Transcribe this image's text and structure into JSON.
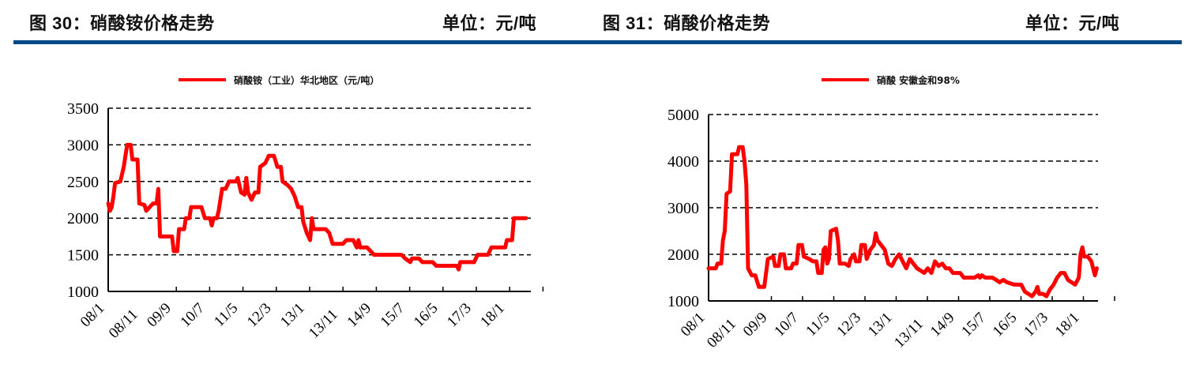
{
  "header": {
    "left": {
      "figure_title": "图 30：硝酸铵价格走势",
      "unit": "单位：元/吨"
    },
    "right": {
      "figure_title": "图 31：硝酸价格走势",
      "unit": "单位：元/吨"
    },
    "divider_color": "#004b87"
  },
  "colors": {
    "series": "#ff0000",
    "axis": "#000000",
    "grid": "#000000"
  },
  "chart_data": [
    {
      "type": "line",
      "title": "硝酸铵价格走势",
      "unit": "元/吨",
      "legend": [
        "硝酸铵（工业）华北地区（元/吨）"
      ],
      "legend_position": "top",
      "xlabel": "",
      "ylabel": "",
      "ylim": [
        1000,
        3500
      ],
      "yticks": [
        1000,
        1500,
        2000,
        2500,
        3000,
        3500
      ],
      "grid": "horizontal dashed",
      "categories": [
        "08/1",
        "08/11",
        "09/9",
        "10/7",
        "11/5",
        "12/3",
        "13/1",
        "13/11",
        "14/9",
        "15/7",
        "16/5",
        "17/3",
        "18/1"
      ],
      "series": [
        {
          "name": "硝酸铵（工业）华北地区（元/吨）",
          "points": [
            [
              0,
              2200
            ],
            [
              0.5,
              2100
            ],
            [
              1,
              2150
            ],
            [
              1.5,
              2300
            ],
            [
              2,
              2480
            ],
            [
              3.5,
              2500
            ],
            [
              4.5,
              2700
            ],
            [
              5,
              2850
            ],
            [
              5.5,
              3000
            ],
            [
              6.5,
              3000
            ],
            [
              7,
              2800
            ],
            [
              8.5,
              2800
            ],
            [
              9,
              2200
            ],
            [
              10.5,
              2180
            ],
            [
              11,
              2100
            ],
            [
              12,
              2150
            ],
            [
              13,
              2200
            ],
            [
              14,
              2200
            ],
            [
              14.5,
              2400
            ],
            [
              15,
              1750
            ],
            [
              17,
              1750
            ],
            [
              18.5,
              1750
            ],
            [
              19,
              1550
            ],
            [
              20,
              1550
            ],
            [
              20.5,
              1850
            ],
            [
              22,
              1850
            ],
            [
              22.5,
              2000
            ],
            [
              23.5,
              2000
            ],
            [
              24,
              2150
            ],
            [
              27,
              2150
            ],
            [
              28,
              2000
            ],
            [
              29.5,
              2000
            ],
            [
              30,
              1900
            ],
            [
              30.5,
              2000
            ],
            [
              31.5,
              2000
            ],
            [
              32,
              2100
            ],
            [
              33,
              2400
            ],
            [
              34,
              2400
            ],
            [
              35,
              2500
            ],
            [
              37,
              2500
            ],
            [
              37.5,
              2550
            ],
            [
              38.5,
              2350
            ],
            [
              39.5,
              2320
            ],
            [
              40,
              2550
            ],
            [
              40.5,
              2350
            ],
            [
              41.5,
              2250
            ],
            [
              42.5,
              2350
            ],
            [
              43.5,
              2350
            ],
            [
              44,
              2700
            ],
            [
              45.5,
              2750
            ],
            [
              46.5,
              2850
            ],
            [
              48,
              2850
            ],
            [
              49,
              2700
            ],
            [
              50,
              2700
            ],
            [
              50.5,
              2500
            ],
            [
              52,
              2450
            ],
            [
              53,
              2400
            ],
            [
              54,
              2300
            ],
            [
              55,
              2150
            ],
            [
              56,
              2150
            ],
            [
              56.5,
              1950
            ],
            [
              57.5,
              1800
            ],
            [
              58.5,
              1700
            ],
            [
              59,
              2000
            ],
            [
              59.5,
              1850
            ],
            [
              61,
              1850
            ],
            [
              63,
              1850
            ],
            [
              64,
              1800
            ],
            [
              65,
              1650
            ],
            [
              68,
              1650
            ],
            [
              69,
              1700
            ],
            [
              71,
              1700
            ],
            [
              72,
              1600
            ],
            [
              72.5,
              1700
            ],
            [
              73,
              1600
            ],
            [
              75,
              1600
            ],
            [
              76,
              1550
            ],
            [
              77,
              1500
            ],
            [
              80,
              1500
            ],
            [
              85,
              1500
            ],
            [
              86,
              1450
            ],
            [
              87.5,
              1400
            ],
            [
              88,
              1450
            ],
            [
              90,
              1450
            ],
            [
              91,
              1400
            ],
            [
              94,
              1400
            ],
            [
              95,
              1350
            ],
            [
              99,
              1350
            ],
            [
              101,
              1350
            ],
            [
              101.5,
              1300
            ],
            [
              102,
              1400
            ],
            [
              106,
              1400
            ],
            [
              107,
              1500
            ],
            [
              110,
              1500
            ],
            [
              111,
              1600
            ],
            [
              115,
              1600
            ],
            [
              115.5,
              1700
            ],
            [
              117,
              1700
            ],
            [
              117.5,
              2000
            ],
            [
              121,
              2000
            ]
          ]
        }
      ]
    },
    {
      "type": "line",
      "title": "硝酸价格走势",
      "unit": "元/吨",
      "legend": [
        "硝酸 安徽金和98%"
      ],
      "legend_position": "top",
      "xlabel": "",
      "ylabel": "",
      "ylim": [
        1000,
        5000
      ],
      "yticks": [
        1000,
        2000,
        3000,
        4000,
        5000
      ],
      "grid": "horizontal dashed",
      "categories": [
        "08/1",
        "08/11",
        "09/9",
        "10/7",
        "11/5",
        "12/3",
        "13/1",
        "13/11",
        "14/9",
        "15/7",
        "16/5",
        "17/3",
        "18/1"
      ],
      "series": [
        {
          "name": "硝酸 安徽金和98%",
          "points": [
            [
              0,
              1700
            ],
            [
              2,
              1700
            ],
            [
              2.5,
              1800
            ],
            [
              3.5,
              1800
            ],
            [
              4,
              2300
            ],
            [
              4.5,
              2500
            ],
            [
              5,
              3300
            ],
            [
              6,
              3350
            ],
            [
              6.5,
              4150
            ],
            [
              8,
              4150
            ],
            [
              8.5,
              4300
            ],
            [
              9.5,
              4300
            ],
            [
              10,
              4000
            ],
            [
              10.5,
              3500
            ],
            [
              11,
              1700
            ],
            [
              12,
              1550
            ],
            [
              13,
              1550
            ],
            [
              14,
              1300
            ],
            [
              15.5,
              1300
            ],
            [
              16,
              1600
            ],
            [
              16.5,
              1900
            ],
            [
              18,
              1950
            ],
            [
              18.5,
              1750
            ],
            [
              19.5,
              1750
            ],
            [
              20,
              2000
            ],
            [
              21,
              2000
            ],
            [
              21.5,
              1700
            ],
            [
              23,
              1700
            ],
            [
              23.5,
              1800
            ],
            [
              24.5,
              1800
            ],
            [
              25,
              2200
            ],
            [
              26,
              2200
            ],
            [
              26.5,
              1950
            ],
            [
              28,
              1900
            ],
            [
              29,
              1850
            ],
            [
              30,
              1850
            ],
            [
              30.5,
              1600
            ],
            [
              31.5,
              1600
            ],
            [
              32,
              2100
            ],
            [
              32.5,
              2150
            ],
            [
              33,
              1800
            ],
            [
              33.5,
              1900
            ],
            [
              34,
              2500
            ],
            [
              35.5,
              2550
            ],
            [
              36,
              2300
            ],
            [
              36.5,
              1800
            ],
            [
              38,
              1800
            ],
            [
              39,
              1750
            ],
            [
              39.5,
              1900
            ],
            [
              40.5,
              2000
            ],
            [
              41,
              1850
            ],
            [
              42,
              1850
            ],
            [
              42.5,
              2200
            ],
            [
              43.5,
              2200
            ],
            [
              44,
              1900
            ],
            [
              45,
              2100
            ],
            [
              46,
              2200
            ],
            [
              46.5,
              2450
            ],
            [
              47,
              2300
            ],
            [
              48,
              2200
            ],
            [
              49,
              2100
            ],
            [
              50,
              1800
            ],
            [
              51,
              1750
            ],
            [
              52,
              1900
            ],
            [
              53,
              2000
            ],
            [
              54,
              1850
            ],
            [
              55,
              1700
            ],
            [
              56,
              1900
            ],
            [
              57,
              1800
            ],
            [
              58,
              1700
            ],
            [
              59,
              1650
            ],
            [
              60,
              1600
            ],
            [
              61,
              1700
            ],
            [
              62,
              1600
            ],
            [
              63,
              1850
            ],
            [
              64,
              1750
            ],
            [
              65,
              1800
            ],
            [
              66,
              1700
            ],
            [
              67,
              1700
            ],
            [
              68,
              1600
            ],
            [
              70,
              1600
            ],
            [
              71,
              1500
            ],
            [
              74,
              1500
            ],
            [
              75,
              1550
            ],
            [
              75.5,
              1500
            ],
            [
              76,
              1550
            ],
            [
              77,
              1500
            ],
            [
              79,
              1500
            ],
            [
              80,
              1450
            ],
            [
              81,
              1400
            ],
            [
              82,
              1450
            ],
            [
              83,
              1400
            ],
            [
              85,
              1350
            ],
            [
              87,
              1350
            ],
            [
              88,
              1200
            ],
            [
              89,
              1150
            ],
            [
              90,
              1100
            ],
            [
              91,
              1200
            ],
            [
              91.5,
              1300
            ],
            [
              92,
              1150
            ],
            [
              93,
              1150
            ],
            [
              94,
              1100
            ],
            [
              95,
              1250
            ],
            [
              96,
              1350
            ],
            [
              97,
              1500
            ],
            [
              98,
              1600
            ],
            [
              99,
              1600
            ],
            [
              100,
              1450
            ],
            [
              101,
              1400
            ],
            [
              102,
              1350
            ],
            [
              103,
              1500
            ],
            [
              103.5,
              2000
            ],
            [
              104,
              2150
            ],
            [
              104.5,
              1950
            ],
            [
              105.5,
              1950
            ],
            [
              106.5,
              1850
            ],
            [
              107,
              1700
            ],
            [
              107.5,
              1550
            ],
            [
              108,
              1700
            ]
          ]
        }
      ]
    }
  ]
}
